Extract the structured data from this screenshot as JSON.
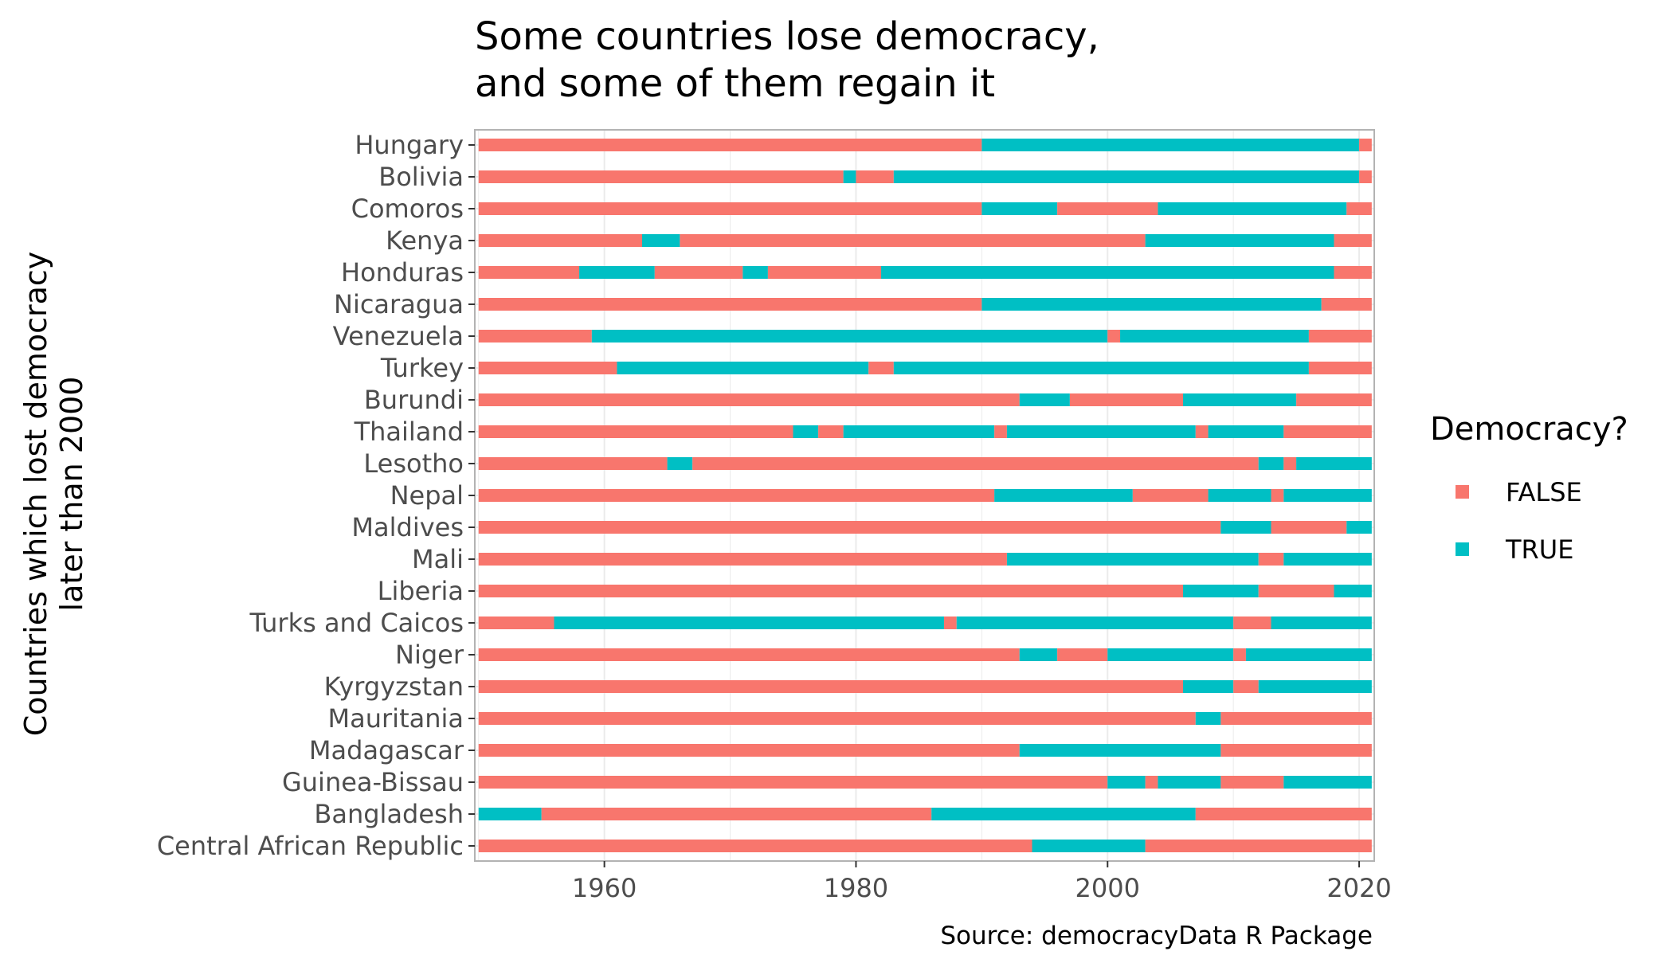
{
  "chart_data": {
    "type": "bar",
    "orientation": "horizontal-timeline",
    "title_lines": [
      "Some countries lose democracy,",
      "and some of them regain it"
    ],
    "ylabel_lines": [
      "Countries which lost democracy",
      "later than 2000"
    ],
    "caption": "Source: democracyData R Package",
    "xlim": [
      1949.7,
      2021.2
    ],
    "xticks": [
      1960,
      1980,
      2000,
      2020
    ],
    "xtick_labels": [
      "1960",
      "1980",
      "2000",
      "2020"
    ],
    "grid": true,
    "legend": {
      "title": "Democracy?",
      "position": "right",
      "entries": [
        {
          "label": "FALSE",
          "color": "#F8766D"
        },
        {
          "label": "TRUE",
          "color": "#00BFC4"
        }
      ]
    },
    "colors": {
      "FALSE": "#F8766D",
      "TRUE": "#00BFC4"
    },
    "countries": [
      {
        "name": "Hungary",
        "segments": [
          [
            1950,
            1990,
            false
          ],
          [
            1990,
            2020,
            true
          ],
          [
            2020,
            2021,
            false
          ]
        ]
      },
      {
        "name": "Bolivia",
        "segments": [
          [
            1950,
            1979,
            false
          ],
          [
            1979,
            1980,
            true
          ],
          [
            1980,
            1983,
            false
          ],
          [
            1983,
            2020,
            true
          ],
          [
            2020,
            2021,
            false
          ]
        ]
      },
      {
        "name": "Comoros",
        "segments": [
          [
            1950,
            1990,
            false
          ],
          [
            1990,
            1996,
            true
          ],
          [
            1996,
            2004,
            false
          ],
          [
            2004,
            2019,
            true
          ],
          [
            2019,
            2021,
            false
          ]
        ]
      },
      {
        "name": "Kenya",
        "segments": [
          [
            1950,
            1963,
            false
          ],
          [
            1963,
            1966,
            true
          ],
          [
            1966,
            2003,
            false
          ],
          [
            2003,
            2018,
            true
          ],
          [
            2018,
            2021,
            false
          ]
        ]
      },
      {
        "name": "Honduras",
        "segments": [
          [
            1950,
            1958,
            false
          ],
          [
            1958,
            1964,
            true
          ],
          [
            1964,
            1971,
            false
          ],
          [
            1971,
            1973,
            true
          ],
          [
            1973,
            1982,
            false
          ],
          [
            1982,
            2018,
            true
          ],
          [
            2018,
            2021,
            false
          ]
        ]
      },
      {
        "name": "Nicaragua",
        "segments": [
          [
            1950,
            1990,
            false
          ],
          [
            1990,
            2017,
            true
          ],
          [
            2017,
            2021,
            false
          ]
        ]
      },
      {
        "name": "Venezuela",
        "segments": [
          [
            1950,
            1959,
            false
          ],
          [
            1959,
            2000,
            true
          ],
          [
            2000,
            2001,
            false
          ],
          [
            2001,
            2016,
            true
          ],
          [
            2016,
            2021,
            false
          ]
        ]
      },
      {
        "name": "Turkey",
        "segments": [
          [
            1950,
            1961,
            false
          ],
          [
            1961,
            1981,
            true
          ],
          [
            1981,
            1983,
            false
          ],
          [
            1983,
            2016,
            true
          ],
          [
            2016,
            2021,
            false
          ]
        ]
      },
      {
        "name": "Burundi",
        "segments": [
          [
            1950,
            1993,
            false
          ],
          [
            1993,
            1997,
            true
          ],
          [
            1997,
            2006,
            false
          ],
          [
            2006,
            2015,
            true
          ],
          [
            2015,
            2021,
            false
          ]
        ]
      },
      {
        "name": "Thailand",
        "segments": [
          [
            1950,
            1975,
            false
          ],
          [
            1975,
            1977,
            true
          ],
          [
            1977,
            1979,
            false
          ],
          [
            1979,
            1991,
            true
          ],
          [
            1991,
            1992,
            false
          ],
          [
            1992,
            2007,
            true
          ],
          [
            2007,
            2008,
            false
          ],
          [
            2008,
            2014,
            true
          ],
          [
            2014,
            2021,
            false
          ]
        ]
      },
      {
        "name": "Lesotho",
        "segments": [
          [
            1950,
            1965,
            false
          ],
          [
            1965,
            1967,
            true
          ],
          [
            1967,
            2012,
            false
          ],
          [
            2012,
            2014,
            true
          ],
          [
            2014,
            2015,
            false
          ],
          [
            2015,
            2021,
            true
          ]
        ]
      },
      {
        "name": "Nepal",
        "segments": [
          [
            1950,
            1991,
            false
          ],
          [
            1991,
            2002,
            true
          ],
          [
            2002,
            2008,
            false
          ],
          [
            2008,
            2013,
            true
          ],
          [
            2013,
            2014,
            false
          ],
          [
            2014,
            2021,
            true
          ]
        ]
      },
      {
        "name": "Maldives",
        "segments": [
          [
            1950,
            2009,
            false
          ],
          [
            2009,
            2013,
            true
          ],
          [
            2013,
            2019,
            false
          ],
          [
            2019,
            2021,
            true
          ]
        ]
      },
      {
        "name": "Mali",
        "segments": [
          [
            1950,
            1992,
            false
          ],
          [
            1992,
            2012,
            true
          ],
          [
            2012,
            2014,
            false
          ],
          [
            2014,
            2021,
            true
          ]
        ]
      },
      {
        "name": "Liberia",
        "segments": [
          [
            1950,
            2006,
            false
          ],
          [
            2006,
            2012,
            true
          ],
          [
            2012,
            2018,
            false
          ],
          [
            2018,
            2021,
            true
          ]
        ]
      },
      {
        "name": "Turks and Caicos",
        "segments": [
          [
            1950,
            1956,
            false
          ],
          [
            1956,
            1987,
            true
          ],
          [
            1987,
            1988,
            false
          ],
          [
            1988,
            2010,
            true
          ],
          [
            2010,
            2013,
            false
          ],
          [
            2013,
            2021,
            true
          ]
        ]
      },
      {
        "name": "Niger",
        "segments": [
          [
            1950,
            1993,
            false
          ],
          [
            1993,
            1996,
            true
          ],
          [
            1996,
            2000,
            false
          ],
          [
            2000,
            2010,
            true
          ],
          [
            2010,
            2011,
            false
          ],
          [
            2011,
            2021,
            true
          ]
        ]
      },
      {
        "name": "Kyrgyzstan",
        "segments": [
          [
            1950,
            2006,
            false
          ],
          [
            2006,
            2010,
            true
          ],
          [
            2010,
            2012,
            false
          ],
          [
            2012,
            2021,
            true
          ]
        ]
      },
      {
        "name": "Mauritania",
        "segments": [
          [
            1950,
            2007,
            false
          ],
          [
            2007,
            2009,
            true
          ],
          [
            2009,
            2021,
            false
          ]
        ]
      },
      {
        "name": "Madagascar",
        "segments": [
          [
            1950,
            1993,
            false
          ],
          [
            1993,
            2009,
            true
          ],
          [
            2009,
            2021,
            false
          ]
        ]
      },
      {
        "name": "Guinea-Bissau",
        "segments": [
          [
            1950,
            2000,
            false
          ],
          [
            2000,
            2003,
            true
          ],
          [
            2003,
            2004,
            false
          ],
          [
            2004,
            2009,
            true
          ],
          [
            2009,
            2014,
            false
          ],
          [
            2014,
            2021,
            true
          ]
        ]
      },
      {
        "name": "Bangladesh",
        "segments": [
          [
            1950,
            1955,
            true
          ],
          [
            1955,
            1986,
            false
          ],
          [
            1986,
            2007,
            true
          ],
          [
            2007,
            2021,
            false
          ]
        ]
      },
      {
        "name": "Central African Republic",
        "segments": [
          [
            1950,
            1994,
            false
          ],
          [
            1994,
            2003,
            true
          ],
          [
            2003,
            2021,
            false
          ]
        ]
      }
    ]
  }
}
